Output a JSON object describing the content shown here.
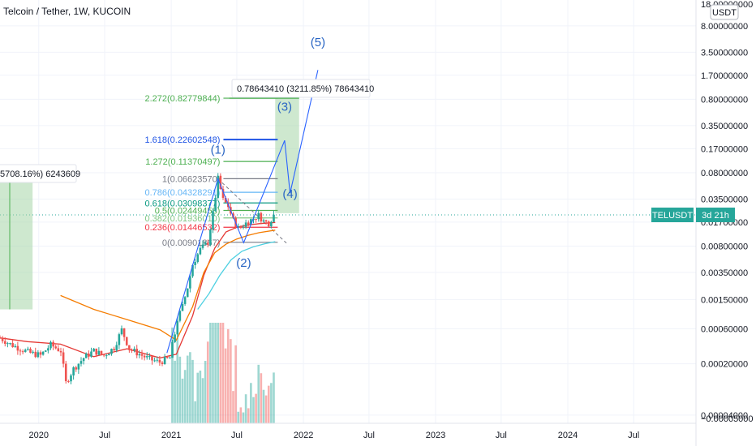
{
  "header": {
    "title": "Telcoin / Tether, 1W, KUCOIN"
  },
  "currency_badge": "USDT",
  "price_badge": {
    "symbol": "TELUSDT",
    "countdown": "3d 21h",
    "value": 0.0213,
    "color": "#26a69a"
  },
  "colors": {
    "up": "#26a69a",
    "down": "#ef5350",
    "ma_red": "#e53935",
    "ma_orange": "#f57c00",
    "ma_cyan": "#4dd0e1",
    "fib_green": "#4caf50",
    "fib_blue": "#1e53e5",
    "wave_blue": "#2962ff",
    "box_green": "#a5d6a7"
  },
  "measure_labels": {
    "main": "0.78643410 (3211.85%) 78643410",
    "left": "5708.16%) 6243609"
  },
  "fib_levels": [
    {
      "label": "2.272(0.82779844)",
      "value": 0.82779844,
      "color": "#4caf50",
      "kind": "fib-2272"
    },
    {
      "label": "1.618(0.22602548)",
      "value": 0.22602548,
      "color": "#1e53e5",
      "kind": "fib-1618"
    },
    {
      "label": "1.272(0.11370497)",
      "value": 0.11370497,
      "color": "#4caf50",
      "kind": "fib-1272"
    },
    {
      "label": "1(0.06623570)",
      "value": 0.0662357,
      "color": "#787b86",
      "kind": "fib-1"
    },
    {
      "label": "0.786(0.04328291)",
      "value": 0.04328291,
      "color": "#64b5f6",
      "kind": "fib-0786"
    },
    {
      "label": "0.618(0.03098377)",
      "value": 0.03098377,
      "color": "#089981",
      "kind": "fib-0618"
    },
    {
      "label": "0.5(0.02449458)",
      "value": 0.02449458,
      "color": "#4caf50",
      "kind": "fib-05"
    },
    {
      "label": "0.382(0.01936010)",
      "value": 0.0193601,
      "color": "#81c784",
      "kind": "fib-0382"
    },
    {
      "label": "0.236(0.01446532)",
      "value": 0.01446532,
      "color": "#f23645",
      "kind": "fib-0236"
    },
    {
      "label": "0(0.00901867)",
      "value": 0.00901867,
      "color": "#787b86",
      "kind": "fib-0"
    }
  ],
  "waves": [
    {
      "label": "(1)",
      "date": "2021-05-10",
      "value": 0.145
    },
    {
      "label": "(2)",
      "date": "2021-07-20",
      "value": 0.0042
    },
    {
      "label": "(3)",
      "date": "2021-11-10",
      "value": 0.56
    },
    {
      "label": "(4)",
      "date": "2021-11-25",
      "value": 0.0365
    },
    {
      "label": "(5)",
      "date": "2022-02-10",
      "value": 4.2
    }
  ],
  "chart_data": {
    "type": "line",
    "title": "Telcoin / Tether, 1W, KUCOIN",
    "x_scale": "time",
    "y_scale": "log",
    "xlim": [
      "2019-09-16",
      "2024-12-20"
    ],
    "ylim": [
      3.6e-05,
      18
    ],
    "x_tick_labels": [
      {
        "label": "2020",
        "date": "2020-01-01"
      },
      {
        "label": "Jul",
        "date": "2020-07-01"
      },
      {
        "label": "2021",
        "date": "2021-01-01"
      },
      {
        "label": "Jul",
        "date": "2021-07-01"
      },
      {
        "label": "2022",
        "date": "2022-01-01"
      },
      {
        "label": "Jul",
        "date": "2022-07-01"
      },
      {
        "label": "2023",
        "date": "2023-01-01"
      },
      {
        "label": "Jul",
        "date": "2023-07-01"
      },
      {
        "label": "2024",
        "date": "2024-01-01"
      },
      {
        "label": "Jul",
        "date": "2024-07-01"
      }
    ],
    "y_tick_labels": [
      {
        "label": "8.00000000",
        "value": 8
      },
      {
        "label": "3.50000000",
        "value": 3.5
      },
      {
        "label": "1.70000000",
        "value": 1.7
      },
      {
        "label": "0.80000000",
        "value": 0.8
      },
      {
        "label": "0.35000000",
        "value": 0.35
      },
      {
        "label": "0.17000000",
        "value": 0.17
      },
      {
        "label": "0.08000000",
        "value": 0.08
      },
      {
        "label": "0.03500000",
        "value": 0.035
      },
      {
        "label": "0.01700000",
        "value": 0.017
      },
      {
        "label": "0.00800000",
        "value": 0.008
      },
      {
        "label": "0.00350000",
        "value": 0.0035
      },
      {
        "label": "0.00150000",
        "value": 0.0015
      },
      {
        "label": "0.00060000",
        "value": 0.0006
      },
      {
        "label": "0.00020000",
        "value": 0.0002
      },
      {
        "label": "0.00004000",
        "value": 4e-05
      }
    ],
    "y_tick_top_partial": "18.00000000",
    "y_tick_bottom_partial": "−0.00005000",
    "series": [
      {
        "kind": "price",
        "points": [
          [
            "2019-09-16",
            0.00045
          ],
          [
            "2019-10-14",
            0.00037
          ],
          [
            "2019-11-11",
            0.00032
          ],
          [
            "2019-12-09",
            0.00028
          ],
          [
            "2020-01-06",
            0.00026
          ],
          [
            "2020-02-03",
            0.00036
          ],
          [
            "2020-03-02",
            0.0003
          ],
          [
            "2020-03-16",
            0.00011
          ],
          [
            "2020-04-06",
            0.00017
          ],
          [
            "2020-05-04",
            0.00024
          ],
          [
            "2020-06-01",
            0.0003
          ],
          [
            "2020-06-29",
            0.00026
          ],
          [
            "2020-07-27",
            0.00033
          ],
          [
            "2020-08-17",
            0.00058
          ],
          [
            "2020-09-07",
            0.00032
          ],
          [
            "2020-10-05",
            0.00027
          ],
          [
            "2020-11-02",
            0.00023
          ],
          [
            "2020-11-30",
            0.00021
          ],
          [
            "2020-12-28",
            0.00024
          ],
          [
            "2021-01-18",
            0.0008
          ],
          [
            "2021-02-01",
            0.0012
          ],
          [
            "2021-02-15",
            0.0022
          ],
          [
            "2021-03-01",
            0.0045
          ],
          [
            "2021-03-22",
            0.0072
          ],
          [
            "2021-04-12",
            0.009
          ],
          [
            "2021-04-26",
            0.022
          ],
          [
            "2021-05-10",
            0.066
          ],
          [
            "2021-05-24",
            0.034
          ],
          [
            "2021-06-07",
            0.028
          ],
          [
            "2021-06-21",
            0.018
          ],
          [
            "2021-07-05",
            0.014
          ],
          [
            "2021-07-19",
            0.0155
          ],
          [
            "2021-08-02",
            0.0175
          ],
          [
            "2021-08-16",
            0.019
          ],
          [
            "2021-08-30",
            0.021
          ],
          [
            "2021-09-13",
            0.0175
          ],
          [
            "2021-09-27",
            0.0165
          ],
          [
            "2021-10-11",
            0.0213
          ]
        ]
      },
      {
        "kind": "ma-red",
        "points": [
          [
            "2019-09-16",
            0.00045
          ],
          [
            "2019-12-01",
            0.0004
          ],
          [
            "2020-03-01",
            0.00037
          ],
          [
            "2020-06-01",
            0.00025
          ],
          [
            "2020-09-01",
            0.00032
          ],
          [
            "2020-12-01",
            0.00024
          ],
          [
            "2021-01-15",
            0.00027
          ],
          [
            "2021-03-01",
            0.0009
          ],
          [
            "2021-04-01",
            0.0032
          ],
          [
            "2021-05-01",
            0.0075
          ],
          [
            "2021-06-01",
            0.0125
          ],
          [
            "2021-07-01",
            0.0145
          ],
          [
            "2021-08-01",
            0.0155
          ],
          [
            "2021-09-01",
            0.0162
          ],
          [
            "2021-10-15",
            0.0168
          ]
        ]
      },
      {
        "kind": "ma-orange",
        "points": [
          [
            "2020-03-01",
            0.0017
          ],
          [
            "2020-06-01",
            0.0011
          ],
          [
            "2020-09-01",
            0.0008
          ],
          [
            "2020-12-01",
            0.00058
          ],
          [
            "2021-01-15",
            0.00042
          ],
          [
            "2021-03-01",
            0.0012
          ],
          [
            "2021-04-01",
            0.0035
          ],
          [
            "2021-05-01",
            0.0065
          ],
          [
            "2021-06-01",
            0.0085
          ],
          [
            "2021-07-01",
            0.01
          ],
          [
            "2021-08-01",
            0.0112
          ],
          [
            "2021-09-01",
            0.0122
          ],
          [
            "2021-10-15",
            0.0132
          ]
        ]
      },
      {
        "kind": "ma-cyan",
        "points": [
          [
            "2021-03-15",
            0.0011
          ],
          [
            "2021-04-15",
            0.0018
          ],
          [
            "2021-05-15",
            0.0032
          ],
          [
            "2021-06-15",
            0.0052
          ],
          [
            "2021-07-15",
            0.0068
          ],
          [
            "2021-08-15",
            0.0078
          ],
          [
            "2021-09-15",
            0.0086
          ],
          [
            "2021-10-15",
            0.0092
          ]
        ]
      }
    ]
  }
}
